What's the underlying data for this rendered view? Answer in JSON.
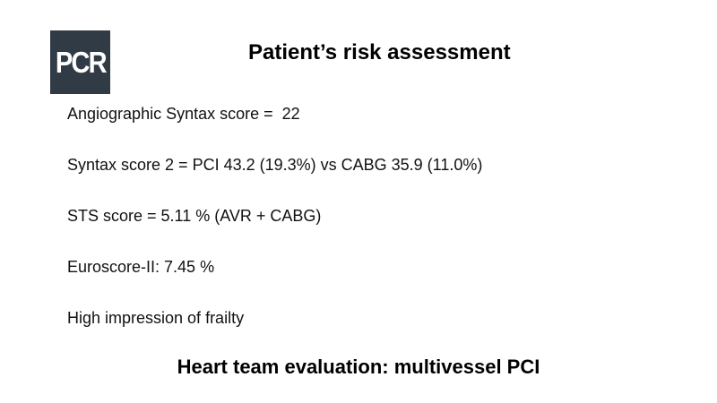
{
  "slide": {
    "logo": {
      "text": "PCR",
      "bg_color": "#303b46",
      "text_color": "#ffffff"
    },
    "title": "Patient’s risk assessment",
    "body_lines": [
      "Angiographic Syntax score =  22",
      "Syntax score 2 = PCI 43.2 (19.3%) vs CABG 35.9 (11.0%)",
      "STS score = 5.11 % (AVR + CABG)",
      "Euroscore-II: 7.45 %",
      "High impression of frailty"
    ],
    "footer": "Heart team evaluation: multivessel PCI"
  }
}
